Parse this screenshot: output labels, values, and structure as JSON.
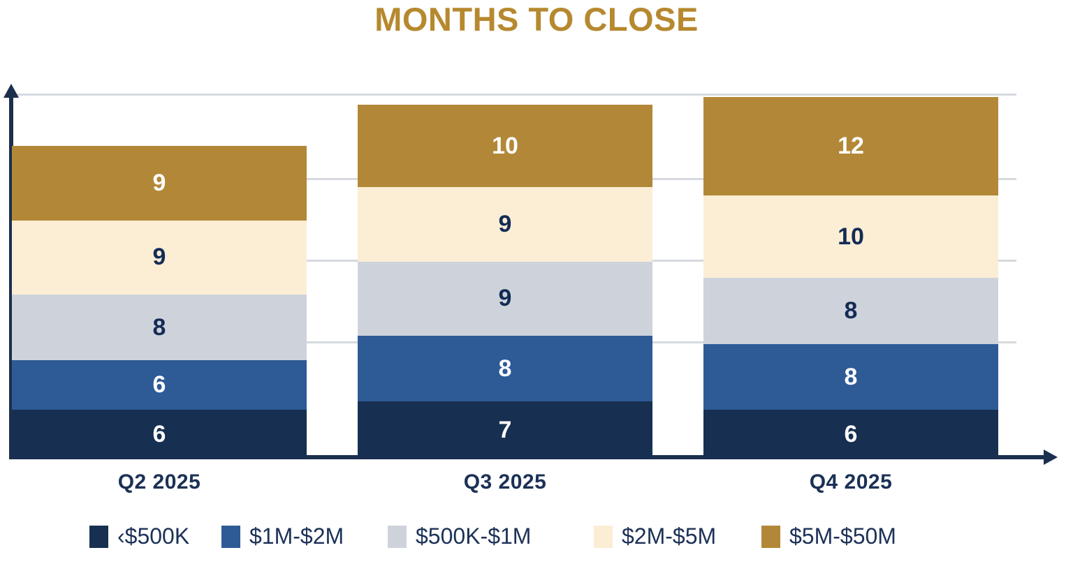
{
  "title": "MONTHS TO CLOSE",
  "chart_data": {
    "type": "bar",
    "stacked": true,
    "title": "MONTHS TO CLOSE",
    "categories": [
      "Q2 2025",
      "Q3 2025",
      "Q4 2025"
    ],
    "series": [
      {
        "name": "‹$500K",
        "color": "#172F50",
        "label_color": "#FFFFFF",
        "values": [
          6,
          7,
          6
        ]
      },
      {
        "name": "$1M-$2M",
        "color": "#2E5A96",
        "label_color": "#FFFFFF",
        "values": [
          6,
          8,
          8
        ]
      },
      {
        "name": "$500K-$1M",
        "color": "#CED3DB",
        "label_color": "#132C55",
        "values": [
          8,
          9,
          8
        ]
      },
      {
        "name": "$2M-$5M",
        "color": "#FCEDD5",
        "label_color": "#132C55",
        "values": [
          9,
          9,
          10
        ]
      },
      {
        "name": "$5M-$50M",
        "color": "#B28838",
        "label_color": "#FFFFFF",
        "values": [
          9,
          10,
          12
        ]
      }
    ],
    "xlabel": "",
    "ylabel": "",
    "ylim": [
      0,
      44.3
    ],
    "grid": "horizontal",
    "gridline_values": [
      14.2,
      24.1,
      34.0,
      44.3
    ],
    "legend_position": "bottom",
    "value_labels": "inside-center",
    "colors": {
      "title": "#B6892F",
      "axis": "#1B2F4E",
      "gridline": "#D5D9DF",
      "category_label_text": "#1B3156",
      "legend_text": "#1C3157"
    }
  }
}
